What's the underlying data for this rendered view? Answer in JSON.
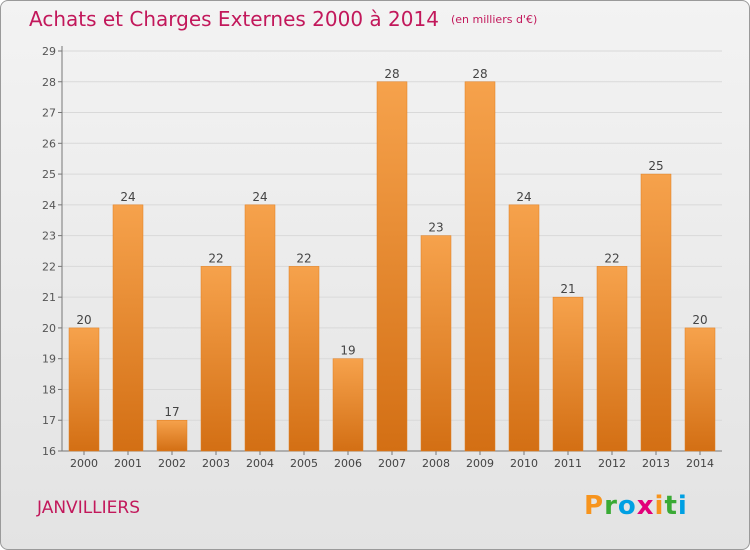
{
  "chart_data": {
    "type": "bar",
    "title": "Achats et Charges Externes 2000 à 2014",
    "subtitle": "(en milliers d'€)",
    "categories": [
      "2000",
      "2001",
      "2002",
      "2003",
      "2004",
      "2005",
      "2006",
      "2007",
      "2008",
      "2009",
      "2010",
      "2011",
      "2012",
      "2013",
      "2014"
    ],
    "values": [
      20,
      24,
      17,
      22,
      24,
      22,
      19,
      28,
      23,
      28,
      24,
      21,
      22,
      25,
      20
    ],
    "ylim": [
      16,
      29
    ],
    "yticks": [
      16,
      17,
      18,
      19,
      20,
      21,
      22,
      23,
      24,
      25,
      26,
      27,
      28,
      29
    ],
    "grid": true,
    "xlabel": "",
    "ylabel": "",
    "bar_color": "#f0922f"
  },
  "commune": "JANVILLIERS",
  "logo": {
    "letters": [
      "P",
      "r",
      "o",
      "x",
      "i",
      "t",
      "i"
    ],
    "colors": [
      "#f7941d",
      "#3aaa35",
      "#00a0e3",
      "#e2007a",
      "#f7941d",
      "#3aaa35",
      "#00a0e3"
    ]
  }
}
